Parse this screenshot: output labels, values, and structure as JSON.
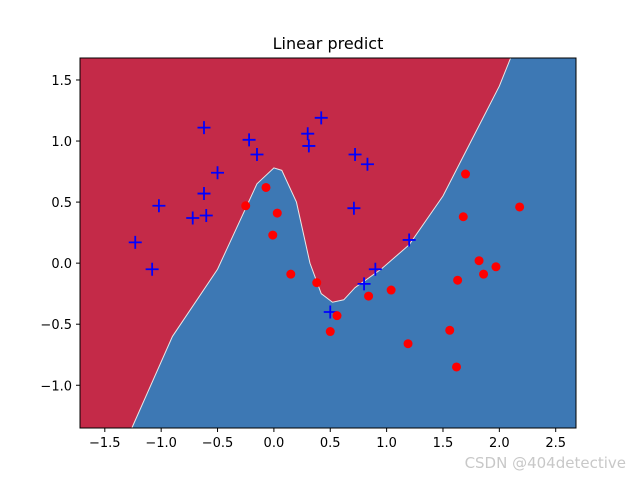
{
  "chart_data": {
    "type": "scatter",
    "title": "Linear predict",
    "xlabel": "",
    "ylabel": "",
    "xlim": [
      -1.72,
      2.68
    ],
    "ylim": [
      -1.35,
      1.68
    ],
    "xticks": [
      -1.5,
      -1.0,
      -0.5,
      0.0,
      0.5,
      1.0,
      1.5,
      2.0,
      2.5
    ],
    "xtick_labels": [
      "−1.5",
      "−1.0",
      "−0.5",
      "0.0",
      "0.5",
      "1.0",
      "1.5",
      "2.0",
      "2.5"
    ],
    "yticks": [
      -1.0,
      -0.5,
      0.0,
      0.5,
      1.0,
      1.5
    ],
    "ytick_labels": [
      "−1.0",
      "−0.5",
      "0.0",
      "0.5",
      "1.0",
      "1.5"
    ],
    "grid": false,
    "background": {
      "upper_region_color": "#c42a48",
      "lower_region_color": "#3d78b4",
      "boundary": [
        [
          -1.26,
          -1.35
        ],
        [
          -0.9,
          -0.6
        ],
        [
          -0.5,
          -0.05
        ],
        [
          -0.3,
          0.35
        ],
        [
          -0.15,
          0.65
        ],
        [
          0.0,
          0.78
        ],
        [
          0.07,
          0.76
        ],
        [
          0.2,
          0.5
        ],
        [
          0.32,
          0.0
        ],
        [
          0.42,
          -0.25
        ],
        [
          0.52,
          -0.32
        ],
        [
          0.62,
          -0.3
        ],
        [
          0.72,
          -0.2
        ],
        [
          0.95,
          -0.05
        ],
        [
          1.2,
          0.15
        ],
        [
          1.5,
          0.55
        ],
        [
          1.75,
          1.0
        ],
        [
          2.0,
          1.45
        ],
        [
          2.1,
          1.68
        ]
      ]
    },
    "series": [
      {
        "marker": "plus",
        "color": "#0000ff",
        "points": [
          [
            -1.23,
            0.17
          ],
          [
            -1.08,
            -0.05
          ],
          [
            -1.02,
            0.47
          ],
          [
            -0.72,
            0.37
          ],
          [
            -0.62,
            1.11
          ],
          [
            -0.62,
            0.57
          ],
          [
            -0.6,
            0.39
          ],
          [
            -0.5,
            0.74
          ],
          [
            -0.22,
            1.01
          ],
          [
            -0.15,
            0.89
          ],
          [
            0.3,
            1.06
          ],
          [
            0.31,
            0.96
          ],
          [
            0.42,
            1.19
          ],
          [
            0.72,
            0.89
          ],
          [
            0.83,
            0.81
          ],
          [
            0.71,
            0.45
          ],
          [
            1.2,
            0.19
          ],
          [
            0.9,
            -0.05
          ],
          [
            0.8,
            -0.17
          ],
          [
            0.5,
            -0.4
          ]
        ]
      },
      {
        "marker": "circle",
        "color": "#ff0000",
        "points": [
          [
            -0.07,
            0.62
          ],
          [
            -0.25,
            0.47
          ],
          [
            0.03,
            0.41
          ],
          [
            -0.01,
            0.23
          ],
          [
            0.15,
            -0.09
          ],
          [
            0.38,
            -0.16
          ],
          [
            0.56,
            -0.43
          ],
          [
            0.5,
            -0.56
          ],
          [
            0.84,
            -0.27
          ],
          [
            1.04,
            -0.22
          ],
          [
            1.19,
            -0.66
          ],
          [
            1.56,
            -0.55
          ],
          [
            1.63,
            -0.14
          ],
          [
            1.62,
            -0.85
          ],
          [
            1.68,
            0.38
          ],
          [
            1.7,
            0.73
          ],
          [
            1.82,
            0.02
          ],
          [
            1.86,
            -0.09
          ],
          [
            1.97,
            -0.03
          ],
          [
            2.18,
            0.46
          ]
        ]
      }
    ]
  },
  "watermark": "CSDN @404detective"
}
